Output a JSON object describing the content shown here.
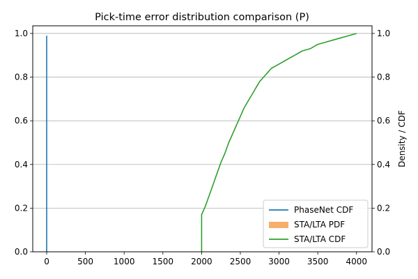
{
  "chart_data": {
    "type": "line",
    "title": "Pick-time error distribution comparison (P)",
    "xlabel": "",
    "ylabel_left": "",
    "ylabel_right": "Density / CDF",
    "xlim": [
      -180,
      4200
    ],
    "ylim_left": [
      0,
      1.035
    ],
    "ylim_right": [
      0,
      1.035
    ],
    "x_ticks": [
      0,
      500,
      1000,
      1500,
      2000,
      2500,
      3000,
      3500,
      4000
    ],
    "y_ticks_left": [
      0.0,
      0.2,
      0.4,
      0.6,
      0.8,
      1.0
    ],
    "y_ticks_right": [
      0.0,
      0.2,
      0.4,
      0.6,
      0.8,
      1.0
    ],
    "grid": "horizontal lines at right-axis ticks",
    "legend_position": "lower right",
    "series": [
      {
        "name": "PhaseNet CDF",
        "kind": "line",
        "axis": "left",
        "color": "#1f77b4",
        "x": [
          0,
          0
        ],
        "y": [
          0.0,
          0.99
        ]
      },
      {
        "name": "STA/LTA PDF",
        "kind": "histogram",
        "axis": "right",
        "color": "#f7ae6b",
        "x": [],
        "y": []
      },
      {
        "name": "STA/LTA CDF",
        "kind": "line",
        "axis": "right",
        "color": "#2ca02c",
        "x": [
          2000,
          2000,
          2050,
          2100,
          2150,
          2200,
          2250,
          2300,
          2350,
          2400,
          2450,
          2500,
          2550,
          2600,
          2650,
          2700,
          2750,
          2800,
          2850,
          2900,
          2950,
          3000,
          3100,
          3200,
          3300,
          3400,
          3500,
          3600,
          3700,
          3800,
          3900,
          4000
        ],
        "y": [
          0.0,
          0.17,
          0.21,
          0.26,
          0.31,
          0.36,
          0.41,
          0.45,
          0.5,
          0.54,
          0.58,
          0.62,
          0.66,
          0.69,
          0.72,
          0.75,
          0.78,
          0.8,
          0.82,
          0.84,
          0.85,
          0.86,
          0.88,
          0.9,
          0.92,
          0.93,
          0.95,
          0.96,
          0.97,
          0.98,
          0.99,
          1.0
        ]
      }
    ]
  }
}
